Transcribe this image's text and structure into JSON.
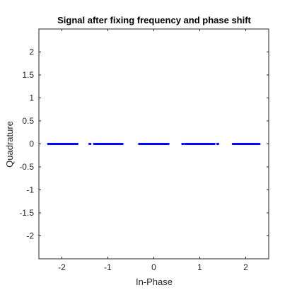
{
  "chart_data": {
    "type": "scatter",
    "title": "Signal after fixing frequency and phase shift",
    "xlabel": "In-Phase",
    "ylabel": "Quadrature",
    "xlim": [
      -2.5,
      2.5
    ],
    "ylim": [
      -2.5,
      2.5
    ],
    "xticks": [
      -2,
      -1,
      0,
      1,
      2
    ],
    "xtick_labels": [
      "-2",
      "-1",
      "0",
      "1",
      "2"
    ],
    "yticks": [
      2,
      1.5,
      1,
      0.5,
      0,
      -0.5,
      -1,
      -1.5,
      -2
    ],
    "ytick_labels": [
      "2",
      "1.5",
      "1",
      "0.5",
      "0",
      "-0.5",
      "-1",
      "-1.5",
      "-2"
    ],
    "grid": false,
    "marker_color": "#0000ff",
    "series": [
      {
        "clusters": [
          {
            "x_min": -2.3,
            "x_max": -1.66,
            "y": 0
          },
          {
            "x_min": -1.4,
            "x_max": -1.38,
            "y": 0
          },
          {
            "x_min": -1.3,
            "x_max": -0.68,
            "y": 0
          },
          {
            "x_min": -0.32,
            "x_max": 0.32,
            "y": 0
          },
          {
            "x_min": 0.62,
            "x_max": 0.64,
            "y": 0
          },
          {
            "x_min": 0.68,
            "x_max": 1.32,
            "y": 0
          },
          {
            "x_min": 1.38,
            "x_max": 1.4,
            "y": 0
          },
          {
            "x_min": 1.72,
            "x_max": 2.3,
            "y": 0
          }
        ]
      }
    ]
  }
}
